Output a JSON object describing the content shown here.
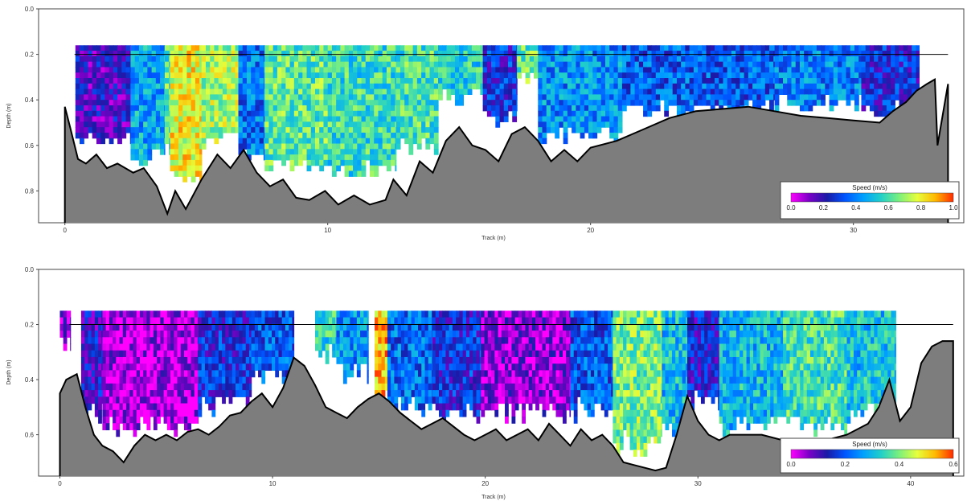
{
  "chart_data": [
    {
      "type": "heatmap",
      "xlabel": "Track (m)",
      "ylabel": "Depth (m)",
      "xlim": [
        -1,
        34.2
      ],
      "ylim": [
        0.0,
        0.94
      ],
      "y_reversed": true,
      "x_ticks": [
        0,
        10,
        20,
        30
      ],
      "y_ticks": [
        "0.0",
        "0.2",
        "0.4",
        "0.6",
        "0.8"
      ],
      "grid": false,
      "waterline_depth": 0.2,
      "top_cell_depth": 0.16,
      "colorbar": {
        "title": "Speed (m/s)",
        "min": 0.0,
        "max": 1.0,
        "ticks": [
          "0.0",
          "0.2",
          "0.4",
          "0.6",
          "0.8",
          "1.0"
        ],
        "colormap": [
          "#ff00ff",
          "#7b00c8",
          "#1a1aa6",
          "#0055ff",
          "#00a0ff",
          "#22d0c8",
          "#7cf07c",
          "#e6ff3c",
          "#ffb800",
          "#ff2a00"
        ],
        "position": "bottom-right"
      },
      "bed_profile": {
        "x": [
          0.0,
          0.2,
          0.5,
          0.8,
          1.2,
          1.6,
          2.0,
          2.6,
          3.0,
          3.5,
          3.9,
          4.2,
          4.6,
          5.2,
          5.8,
          6.3,
          6.8,
          7.3,
          7.8,
          8.3,
          8.8,
          9.3,
          9.9,
          10.4,
          11.0,
          11.6,
          12.2,
          12.5,
          13.0,
          13.5,
          14.0,
          14.5,
          15.0,
          15.5,
          16.0,
          16.5,
          17.0,
          17.5,
          18.0,
          18.5,
          19.0,
          19.5,
          20.0,
          21.0,
          22.0,
          23.0,
          24.0,
          25.0,
          26.0,
          27.0,
          28.0,
          29.0,
          30.0,
          31.0,
          31.5,
          32.0,
          32.4,
          32.8,
          33.1,
          33.2,
          33.6
        ],
        "y": [
          0.43,
          0.52,
          0.66,
          0.68,
          0.64,
          0.7,
          0.68,
          0.72,
          0.7,
          0.78,
          0.9,
          0.8,
          0.88,
          0.75,
          0.64,
          0.7,
          0.62,
          0.72,
          0.78,
          0.75,
          0.83,
          0.84,
          0.8,
          0.86,
          0.82,
          0.86,
          0.84,
          0.75,
          0.82,
          0.67,
          0.72,
          0.58,
          0.52,
          0.6,
          0.62,
          0.67,
          0.55,
          0.52,
          0.58,
          0.67,
          0.62,
          0.67,
          0.61,
          0.58,
          0.53,
          0.48,
          0.45,
          0.44,
          0.43,
          0.45,
          0.47,
          0.48,
          0.49,
          0.5,
          0.45,
          0.41,
          0.36,
          0.33,
          0.31,
          0.6,
          0.33
        ]
      },
      "bands": [
        {
          "x0": 0.4,
          "x1": 2.5,
          "bottom": 0.55,
          "speed": 0.18
        },
        {
          "x0": 2.5,
          "x1": 3.8,
          "bottom": 0.64,
          "speed": 0.46
        },
        {
          "x0": 3.8,
          "x1": 4.0,
          "bottom": 0.6,
          "speed": 0.62
        },
        {
          "x0": 4.0,
          "x1": 5.2,
          "bottom": 0.72,
          "speed": 0.79
        },
        {
          "x0": 5.2,
          "x1": 6.6,
          "bottom": 0.57,
          "speed": 0.72
        },
        {
          "x0": 6.6,
          "x1": 7.6,
          "bottom": 0.62,
          "speed": 0.38
        },
        {
          "x0": 7.6,
          "x1": 10.0,
          "bottom": 0.67,
          "speed": 0.63
        },
        {
          "x0": 10.0,
          "x1": 12.6,
          "bottom": 0.7,
          "speed": 0.58
        },
        {
          "x0": 12.6,
          "x1": 14.2,
          "bottom": 0.6,
          "speed": 0.6
        },
        {
          "x0": 14.2,
          "x1": 15.9,
          "bottom": 0.38,
          "speed": 0.55
        },
        {
          "x0": 15.9,
          "x1": 17.2,
          "bottom": 0.46,
          "speed": 0.27
        },
        {
          "x0": 17.2,
          "x1": 18.0,
          "bottom": 0.28,
          "speed": 0.64
        },
        {
          "x0": 18.0,
          "x1": 21.2,
          "bottom": 0.55,
          "speed": 0.42
        },
        {
          "x0": 21.2,
          "x1": 27.0,
          "bottom": 0.43,
          "speed": 0.34
        },
        {
          "x0": 27.0,
          "x1": 30.3,
          "bottom": 0.4,
          "speed": 0.4
        },
        {
          "x0": 30.3,
          "x1": 32.5,
          "bottom": 0.43,
          "speed": 0.26
        }
      ]
    },
    {
      "type": "heatmap",
      "xlabel": "Track (m)",
      "ylabel": "Depth (m)",
      "xlim": [
        -1,
        42.5
      ],
      "ylim": [
        0.0,
        0.75
      ],
      "y_reversed": true,
      "x_ticks": [
        0,
        10,
        20,
        30,
        40
      ],
      "y_ticks": [
        "0.0",
        "0.2",
        "0.4",
        "0.6"
      ],
      "grid": false,
      "waterline_depth": 0.2,
      "top_cell_depth": 0.15,
      "colorbar": {
        "title": "Speed (m/s)",
        "min": 0.0,
        "max": 0.6,
        "ticks": [
          "0.0",
          "0.2",
          "0.4",
          "0.6"
        ],
        "colormap": [
          "#ff00ff",
          "#7b00c8",
          "#1a1aa6",
          "#0055ff",
          "#00a0ff",
          "#22d0c8",
          "#7cf07c",
          "#e6ff3c",
          "#ffb800",
          "#ff2a00"
        ],
        "position": "bottom-right"
      },
      "bed_profile": {
        "x": [
          0.0,
          0.3,
          0.8,
          1.2,
          1.6,
          2.0,
          2.5,
          3.0,
          3.5,
          4.0,
          4.5,
          5.0,
          5.5,
          6.0,
          6.5,
          7.0,
          7.5,
          8.0,
          8.5,
          9.0,
          9.5,
          10.0,
          10.5,
          11.0,
          11.5,
          12.0,
          12.5,
          13.0,
          13.5,
          14.0,
          14.5,
          15.0,
          15.5,
          16.0,
          16.5,
          17.0,
          17.5,
          18.0,
          18.5,
          19.0,
          19.5,
          20.0,
          20.5,
          21.0,
          21.5,
          22.0,
          22.5,
          23.0,
          23.5,
          24.0,
          24.5,
          25.0,
          25.5,
          26.0,
          26.5,
          27.0,
          27.5,
          28.0,
          28.5,
          29.0,
          29.5,
          30.0,
          30.5,
          31.0,
          31.5,
          32.0,
          33.0,
          34.0,
          35.0,
          36.0,
          37.0,
          38.0,
          38.5,
          39.0,
          39.5,
          40.0,
          40.5,
          41.0,
          41.5,
          42.0
        ],
        "y": [
          0.45,
          0.4,
          0.38,
          0.5,
          0.6,
          0.64,
          0.66,
          0.7,
          0.64,
          0.6,
          0.62,
          0.6,
          0.62,
          0.59,
          0.58,
          0.6,
          0.57,
          0.53,
          0.52,
          0.48,
          0.45,
          0.5,
          0.43,
          0.32,
          0.35,
          0.42,
          0.5,
          0.52,
          0.54,
          0.5,
          0.47,
          0.45,
          0.48,
          0.52,
          0.55,
          0.58,
          0.56,
          0.54,
          0.57,
          0.6,
          0.62,
          0.6,
          0.58,
          0.62,
          0.6,
          0.58,
          0.62,
          0.56,
          0.6,
          0.64,
          0.58,
          0.62,
          0.6,
          0.64,
          0.7,
          0.71,
          0.72,
          0.73,
          0.72,
          0.6,
          0.46,
          0.55,
          0.6,
          0.62,
          0.6,
          0.6,
          0.6,
          0.62,
          0.63,
          0.62,
          0.6,
          0.56,
          0.5,
          0.4,
          0.55,
          0.5,
          0.34,
          0.28,
          0.26,
          0.26
        ]
      },
      "bands": [
        {
          "x0": 0.0,
          "x1": 0.5,
          "bottom": 0.25,
          "speed": 0.06
        },
        {
          "x0": 1.0,
          "x1": 2.0,
          "bottom": 0.52,
          "speed": 0.12
        },
        {
          "x0": 2.0,
          "x1": 6.5,
          "bottom": 0.56,
          "speed": 0.04
        },
        {
          "x0": 6.5,
          "x1": 9.0,
          "bottom": 0.48,
          "speed": 0.16
        },
        {
          "x0": 9.0,
          "x1": 11.0,
          "bottom": 0.38,
          "speed": 0.2
        },
        {
          "x0": 12.0,
          "x1": 13.0,
          "bottom": 0.28,
          "speed": 0.34
        },
        {
          "x0": 13.0,
          "x1": 14.5,
          "bottom": 0.36,
          "speed": 0.26
        },
        {
          "x0": 14.8,
          "x1": 15.4,
          "bottom": 0.44,
          "speed": 0.52
        },
        {
          "x0": 15.4,
          "x1": 17.5,
          "bottom": 0.48,
          "speed": 0.22
        },
        {
          "x0": 17.5,
          "x1": 19.8,
          "bottom": 0.52,
          "speed": 0.16
        },
        {
          "x0": 19.8,
          "x1": 24.0,
          "bottom": 0.51,
          "speed": 0.06
        },
        {
          "x0": 24.0,
          "x1": 26.0,
          "bottom": 0.5,
          "speed": 0.2
        },
        {
          "x0": 26.0,
          "x1": 28.3,
          "bottom": 0.62,
          "speed": 0.4
        },
        {
          "x0": 28.3,
          "x1": 29.5,
          "bottom": 0.58,
          "speed": 0.3
        },
        {
          "x0": 29.5,
          "x1": 31.0,
          "bottom": 0.46,
          "speed": 0.14
        },
        {
          "x0": 31.0,
          "x1": 34.0,
          "bottom": 0.55,
          "speed": 0.3
        },
        {
          "x0": 34.0,
          "x1": 37.0,
          "bottom": 0.55,
          "speed": 0.36
        },
        {
          "x0": 37.0,
          "x1": 39.3,
          "bottom": 0.5,
          "speed": 0.31
        }
      ]
    }
  ]
}
